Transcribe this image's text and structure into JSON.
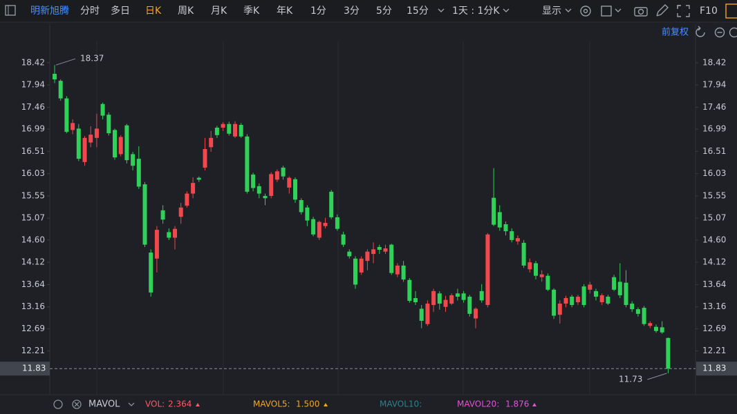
{
  "toolbar": {
    "stock": "明新旭腾",
    "periods": [
      "分时",
      "多日",
      "日K",
      "周K",
      "月K",
      "季K",
      "年K",
      "1分",
      "3分",
      "5分",
      "15分"
    ],
    "active": 2,
    "interval": "1天 : 1分K",
    "display": "显示",
    "f10": "F10"
  },
  "adjust": "前复权",
  "chart_data": {
    "type": "candlestick",
    "open": [
      18.18,
      18.03,
      17.65,
      16.97,
      17.0,
      16.28,
      16.7,
      16.8,
      17.53,
      17.3,
      16.97,
      16.45,
      17.07,
      16.45,
      16.35,
      15.8,
      14.33,
      14.2,
      15.24,
      14.77,
      14.65,
      15.1,
      15.34,
      15.6,
      15.94,
      16.16,
      16.6,
      17.02,
      17.02,
      17.1,
      16.83,
      17.08,
      16.83,
      16.01,
      15.76,
      15.55,
      15.55,
      15.9,
      16.16,
      15.73,
      15.91,
      15.46,
      15.3,
      15.05,
      14.65,
      14.9,
      15.64,
      15.09,
      14.72,
      14.35,
      14.2,
      13.9,
      14.15,
      14.3,
      14.45,
      14.35,
      14.5,
      13.86,
      14.05,
      13.74,
      13.35,
      13.12,
      12.79,
      13.2,
      13.45,
      13.16,
      13.23,
      13.45,
      13.45,
      13.38,
      12.91,
      13.5,
      13.2,
      15.51,
      15.2,
      14.94,
      14.79,
      14.57,
      14.54,
      13.97,
      14.1,
      13.8,
      13.83,
      13.53,
      12.99,
      13.23,
      13.38,
      13.26,
      13.6,
      13.53,
      13.5,
      13.26,
      13.38,
      13.8,
      13.7,
      13.68,
      13.23,
      13.11,
      13.14,
      12.75,
      12.73,
      12.72,
      12.49
    ],
    "high": [
      18.37,
      18.06,
      17.7,
      17.2,
      17.1,
      16.84,
      17.05,
      17.32,
      17.56,
      17.35,
      17.0,
      16.86,
      17.1,
      16.5,
      16.62,
      15.85,
      14.4,
      14.9,
      15.35,
      14.85,
      14.9,
      15.4,
      15.65,
      15.95,
      15.97,
      16.8,
      16.95,
      17.06,
      17.14,
      17.15,
      17.16,
      17.12,
      16.88,
      16.05,
      15.82,
      15.6,
      16.06,
      16.12,
      16.2,
      15.97,
      15.95,
      15.5,
      15.35,
      15.1,
      15.02,
      15.08,
      15.68,
      15.15,
      14.78,
      14.4,
      14.25,
      14.25,
      14.4,
      14.55,
      14.5,
      14.5,
      14.52,
      14.1,
      14.15,
      13.78,
      13.5,
      13.2,
      13.3,
      13.55,
      13.5,
      13.4,
      13.45,
      13.55,
      13.5,
      13.42,
      13.15,
      13.65,
      14.75,
      16.15,
      15.35,
      15.0,
      14.85,
      14.7,
      14.6,
      14.2,
      14.15,
      13.95,
      13.88,
      13.56,
      13.3,
      13.4,
      13.42,
      13.42,
      13.65,
      13.7,
      13.55,
      13.45,
      13.42,
      13.85,
      14.1,
      13.95,
      13.28,
      13.15,
      13.18,
      12.85,
      12.78,
      12.85,
      12.5
    ],
    "low": [
      17.98,
      17.6,
      16.9,
      16.88,
      16.3,
      16.2,
      16.6,
      16.6,
      17.2,
      16.85,
      16.33,
      16.4,
      16.25,
      16.1,
      15.7,
      14.45,
      13.38,
      13.9,
      14.95,
      14.6,
      14.4,
      14.95,
      15.3,
      15.5,
      15.85,
      16.1,
      16.5,
      16.8,
      16.95,
      16.85,
      16.8,
      16.8,
      15.6,
      15.65,
      15.5,
      15.35,
      15.5,
      15.85,
      15.9,
      15.6,
      15.4,
      15.15,
      14.9,
      14.68,
      14.6,
      14.85,
      15.05,
      14.8,
      14.45,
      14.2,
      13.55,
      13.85,
      13.95,
      14.1,
      14.3,
      14.3,
      13.85,
      13.8,
      13.7,
      13.25,
      13.2,
      12.7,
      12.75,
      13.05,
      13.1,
      13.05,
      13.2,
      13.3,
      13.25,
      12.95,
      12.7,
      13.25,
      13.15,
      14.9,
      14.8,
      14.7,
      14.55,
      14.5,
      14.0,
      13.9,
      13.75,
      13.7,
      13.5,
      12.9,
      12.8,
      13.15,
      13.15,
      13.2,
      13.15,
      13.45,
      13.3,
      13.2,
      13.2,
      13.5,
      13.35,
      13.15,
      13.05,
      12.95,
      12.75,
      12.7,
      12.6,
      12.58,
      11.73
    ],
    "close": [
      18.06,
      17.65,
      16.93,
      17.12,
      16.35,
      16.8,
      16.87,
      17.0,
      17.28,
      16.9,
      16.38,
      16.82,
      16.32,
      16.2,
      15.75,
      14.5,
      13.47,
      14.82,
      15.04,
      14.65,
      14.84,
      15.3,
      15.6,
      15.83,
      15.9,
      16.56,
      16.8,
      16.86,
      17.1,
      16.89,
      17.1,
      16.83,
      15.64,
      15.72,
      15.6,
      15.5,
      16.02,
      16.08,
      15.97,
      15.94,
      15.47,
      15.2,
      15.02,
      14.72,
      14.99,
      14.97,
      15.09,
      14.84,
      14.5,
      14.25,
      13.64,
      14.2,
      14.35,
      14.4,
      14.39,
      14.42,
      13.89,
      14.05,
      13.75,
      13.29,
      13.26,
      12.86,
      13.23,
      13.5,
      13.23,
      13.31,
      13.41,
      13.38,
      13.31,
      13.01,
      13.12,
      13.3,
      14.72,
      14.93,
      14.87,
      14.79,
      14.6,
      14.64,
      14.05,
      14.12,
      13.83,
      13.86,
      13.53,
      12.97,
      13.23,
      13.35,
      13.2,
      13.38,
      13.2,
      13.64,
      13.38,
      13.41,
      13.23,
      13.53,
      13.41,
      13.2,
      13.11,
      13.01,
      12.79,
      12.81,
      12.64,
      12.61,
      11.83
    ],
    "up_color": "#f0484c",
    "down_color": "#2fd158",
    "ylim": [
      11.67,
      19.25
    ],
    "yticks": [
      18.42,
      17.94,
      17.46,
      16.99,
      16.51,
      16.03,
      15.55,
      15.07,
      {
        "value": 14.6,
        "label": "14.60"
      },
      14.12,
      13.64,
      13.16,
      12.69,
      12.21
    ],
    "high_label": 18.37,
    "low_label": 11.73,
    "last_price": 11.83
  },
  "indicator_bar": {
    "name": "MAVOL",
    "items": [
      {
        "label": "VOL:",
        "value": "2.364",
        "color": "#ff5a66"
      },
      {
        "label": "MAVOL5:",
        "value": "1.500",
        "color": "#f5a623"
      },
      {
        "label": "MAVOL10:",
        "color": "#2f7f8f"
      },
      {
        "label": "MAVOL20:",
        "value": "1.876",
        "color": "#e055d8"
      }
    ]
  }
}
